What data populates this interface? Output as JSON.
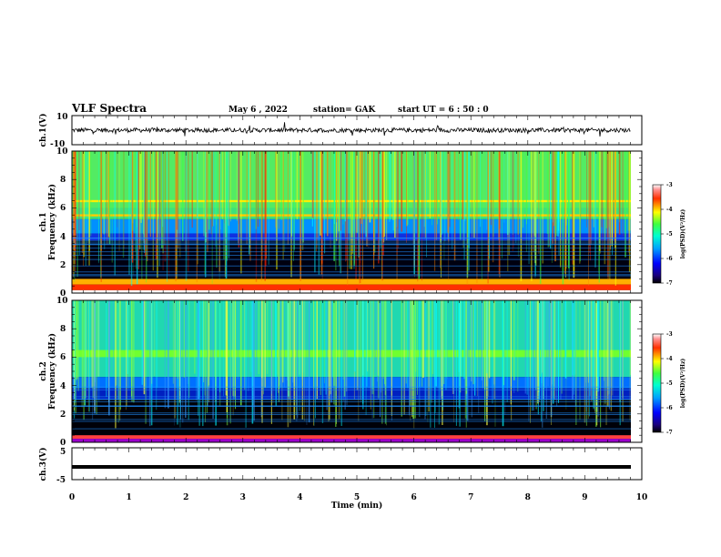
{
  "header": {
    "title": "VLF Spectra",
    "date": "May 6 , 2022",
    "station": "station= GAK",
    "start": "start  UT =  6 : 50 : 0"
  },
  "chart_data": [
    {
      "type": "line",
      "name": "ch1-waveform",
      "ylabel": "ch.1(V)",
      "ylim": [
        -10,
        10
      ],
      "yticks": [
        "10",
        "-10"
      ],
      "xlim": [
        0,
        10
      ],
      "description_values": {
        "mean": 0,
        "amplitude_approx": 3
      }
    },
    {
      "type": "heatmap",
      "name": "ch1-spectrogram",
      "ylabel": "ch.1\nFrequency  (kHz)",
      "ylabel_lines": [
        "ch.1",
        "Frequency  (kHz)"
      ],
      "ylim": [
        0,
        10
      ],
      "yticks": [
        "0",
        "2",
        "4",
        "6",
        "8",
        "10"
      ],
      "xlim": [
        0,
        10
      ],
      "colorbar": {
        "label": "log(PSD)(V²/Hz)",
        "range": [
          -7,
          -3
        ],
        "ticks": [
          "-3",
          "-4",
          "-5",
          "-6",
          "-7"
        ]
      }
    },
    {
      "type": "heatmap",
      "name": "ch2-spectrogram",
      "ylabel_lines": [
        "ch.2",
        "Frequency  (kHz)"
      ],
      "ylim": [
        0,
        10
      ],
      "yticks": [
        "0",
        "2",
        "4",
        "6",
        "8",
        "10"
      ],
      "xlim": [
        0,
        10
      ],
      "colorbar": {
        "label": "log(PSD)(V²/Hz)",
        "range": [
          -7,
          -3
        ],
        "ticks": [
          "-3",
          "-4",
          "-5",
          "-6",
          "-7"
        ]
      }
    },
    {
      "type": "line",
      "name": "ch3-waveform",
      "ylabel": "ch.3(V)",
      "ylim": [
        -5,
        5
      ],
      "yticks": [
        "5",
        "-5"
      ],
      "xlim": [
        0,
        10
      ],
      "xlabel": "Time  (min)",
      "xticks": [
        "0",
        "1",
        "2",
        "3",
        "4",
        "5",
        "6",
        "7",
        "8",
        "9",
        "10"
      ],
      "description_values": {
        "level": -1
      }
    }
  ],
  "colors": {
    "axis": "#000000",
    "trace": "#000000",
    "background": "#ffffff"
  }
}
